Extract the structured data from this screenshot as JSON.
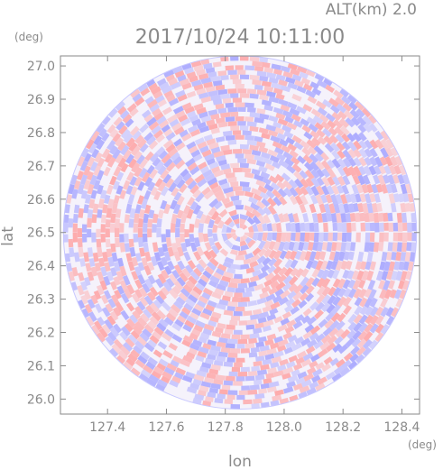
{
  "header": {
    "altitude_label": "ALT(km) 2.0",
    "timestamp": "2017/10/24 10:11:00",
    "lat_unit": "(deg)",
    "lon_unit": "(deg)"
  },
  "chart_data": {
    "type": "heatmap",
    "title": "2017/10/24 10:11:00",
    "subtitle": "ALT(km) 2.0",
    "xlabel": "lon",
    "ylabel": "lat",
    "x_unit": "(deg)",
    "y_unit": "(deg)",
    "xlim": [
      127.24,
      128.46
    ],
    "ylim": [
      25.955,
      27.03
    ],
    "x_ticks": [
      "127.4",
      "127.6",
      "127.8",
      "128.0",
      "128.2",
      "128.4"
    ],
    "y_ticks": [
      "26.0",
      "26.1",
      "26.2",
      "26.3",
      "26.4",
      "26.5",
      "26.6",
      "26.7",
      "26.8",
      "26.9",
      "27.0"
    ],
    "radar_center": {
      "lon": 127.85,
      "lat": 26.5
    },
    "radar_range_deg_lon": 0.61,
    "radar_range_deg_lat": 0.53,
    "colors": {
      "positive": "#ff9a9a",
      "negative": "#9a9aff",
      "neutral": "#ffffff",
      "axis": "#8a8a8a"
    },
    "grid": false
  }
}
